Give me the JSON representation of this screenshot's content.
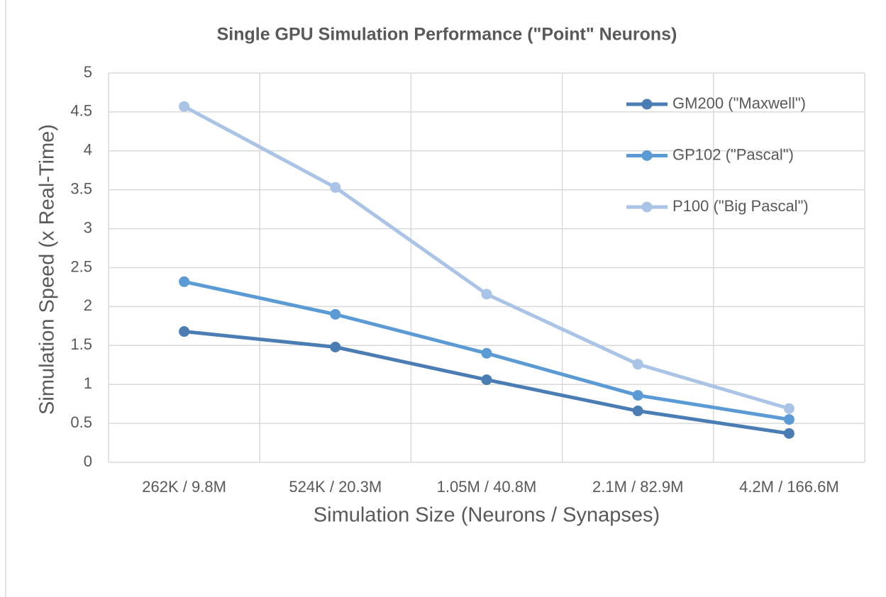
{
  "chart_data": {
    "type": "line",
    "title": "Single GPU Simulation Performance (\"Point\" Neurons)",
    "x_label": "Simulation Size (Neurons / Synapses)",
    "y_label": "Simulation Speed (x Real-Time)",
    "categories": [
      "262K / 9.8M",
      "524K / 20.3M",
      "1.05M / 40.8M",
      "2.1M / 82.9M",
      "4.2M / 166.6M"
    ],
    "series": [
      {
        "name": "GM200 (\"Maxwell\")",
        "color": "#4a7db3",
        "values": [
          1.68,
          1.48,
          1.06,
          0.66,
          0.37
        ]
      },
      {
        "name": "GP102 (\"Pascal\")",
        "color": "#5b9bd5",
        "values": [
          2.32,
          1.9,
          1.4,
          0.86,
          0.55
        ]
      },
      {
        "name": "P100 (\"Big Pascal\")",
        "color": "#a9c4e6",
        "values": [
          4.57,
          3.53,
          2.16,
          1.26,
          0.69
        ]
      }
    ],
    "ylim": [
      0,
      5
    ],
    "yticks": [
      0,
      0.5,
      1,
      1.5,
      2,
      2.5,
      3,
      3.5,
      4,
      4.5,
      5
    ],
    "grid": true,
    "legend": "upper right"
  }
}
